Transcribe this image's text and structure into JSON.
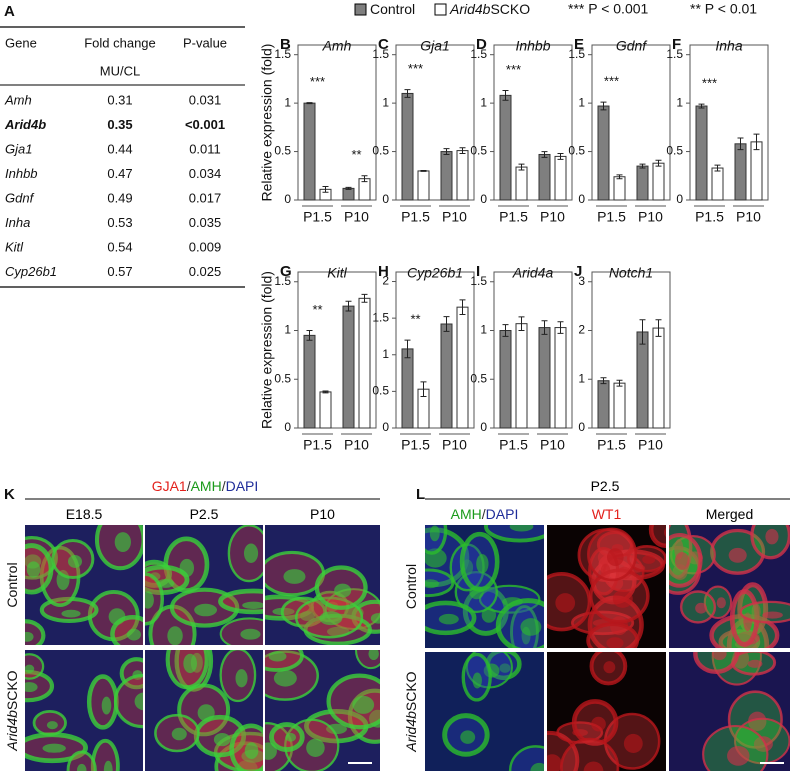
{
  "legend": {
    "items": [
      {
        "name": "Control",
        "color": "#7f7f7f"
      },
      {
        "name_italic": "Arid4b",
        "name": "SCKO",
        "color": "#ffffff"
      }
    ],
    "notes": [
      "*** P < 0.001",
      "** P < 0.01"
    ]
  },
  "table": {
    "label": "A",
    "headers": [
      "Gene",
      "Fold change",
      "P-value"
    ],
    "subheader": "MU/CL",
    "bold_row": 1,
    "rows": [
      [
        "Amh",
        "0.31",
        "0.031"
      ],
      [
        "Arid4b",
        "0.35",
        "<0.001"
      ],
      [
        "Gja1",
        "0.44",
        "0.011"
      ],
      [
        "Inhbb",
        "0.47",
        "0.034"
      ],
      [
        "Gdnf",
        "0.49",
        "0.017"
      ],
      [
        "Inha",
        "0.53",
        "0.035"
      ],
      [
        "Kitl",
        "0.54",
        "0.009"
      ],
      [
        "Cyp26b1",
        "0.57",
        "0.025"
      ]
    ]
  },
  "chart_data": [
    {
      "type": "bar",
      "label": "B",
      "title": "Amh",
      "ylabel": "Relative expression (fold)",
      "categories": [
        "P1.5",
        "P10"
      ],
      "series": [
        {
          "color": "#7f7f7f",
          "values": [
            1.0,
            0.12
          ],
          "errors": [
            0.005,
            0.01
          ]
        },
        {
          "color": "#ffffff",
          "values": [
            0.11,
            0.22
          ],
          "errors": [
            0.03,
            0.03
          ]
        }
      ],
      "ylim": [
        0,
        1.6
      ],
      "yticks": [
        0,
        0.5,
        1,
        1.5
      ],
      "annotations": [
        {
          "text": "***",
          "category": 0
        },
        {
          "text": "**",
          "category": 1
        }
      ]
    },
    {
      "type": "bar",
      "label": "C",
      "title": "Gja1",
      "categories": [
        "P1.5",
        "P10"
      ],
      "series": [
        {
          "color": "#7f7f7f",
          "values": [
            1.1,
            0.5
          ],
          "errors": [
            0.04,
            0.03
          ]
        },
        {
          "color": "#ffffff",
          "values": [
            0.3,
            0.51
          ],
          "errors": [
            0.005,
            0.03
          ]
        }
      ],
      "ylim": [
        0,
        1.6
      ],
      "yticks": [
        0,
        0.5,
        1,
        1.5
      ],
      "annotations": [
        {
          "text": "***",
          "category": 0
        }
      ]
    },
    {
      "type": "bar",
      "label": "D",
      "title": "Inhbb",
      "categories": [
        "P1.5",
        "P10"
      ],
      "series": [
        {
          "color": "#7f7f7f",
          "values": [
            1.08,
            0.47
          ],
          "errors": [
            0.05,
            0.03
          ]
        },
        {
          "color": "#ffffff",
          "values": [
            0.34,
            0.45
          ],
          "errors": [
            0.03,
            0.03
          ]
        }
      ],
      "ylim": [
        0,
        1.6
      ],
      "yticks": [
        0,
        0.5,
        1,
        1.5
      ],
      "annotations": [
        {
          "text": "***",
          "category": 0
        }
      ]
    },
    {
      "type": "bar",
      "label": "E",
      "title": "Gdnf",
      "categories": [
        "P1.5",
        "P10"
      ],
      "series": [
        {
          "color": "#7f7f7f",
          "values": [
            0.97,
            0.35
          ],
          "errors": [
            0.04,
            0.02
          ]
        },
        {
          "color": "#ffffff",
          "values": [
            0.24,
            0.38
          ],
          "errors": [
            0.02,
            0.03
          ]
        }
      ],
      "ylim": [
        0,
        1.6
      ],
      "yticks": [
        0,
        0.5,
        1,
        1.5
      ],
      "annotations": [
        {
          "text": "***",
          "category": 0
        }
      ]
    },
    {
      "type": "bar",
      "label": "F",
      "title": "Inha",
      "categories": [
        "P1.5",
        "P10"
      ],
      "series": [
        {
          "color": "#7f7f7f",
          "values": [
            0.97,
            0.58
          ],
          "errors": [
            0.02,
            0.06
          ]
        },
        {
          "color": "#ffffff",
          "values": [
            0.33,
            0.6
          ],
          "errors": [
            0.03,
            0.08
          ]
        }
      ],
      "ylim": [
        0,
        1.6
      ],
      "yticks": [
        0,
        0.5,
        1,
        1.5
      ],
      "annotations": [
        {
          "text": "***",
          "category": 0
        }
      ]
    },
    {
      "type": "bar",
      "label": "G",
      "title": "Kitl",
      "ylabel": "Relative expression (fold)",
      "categories": [
        "P1.5",
        "P10"
      ],
      "series": [
        {
          "color": "#7f7f7f",
          "values": [
            0.95,
            1.25
          ],
          "errors": [
            0.05,
            0.05
          ]
        },
        {
          "color": "#ffffff",
          "values": [
            0.37,
            1.33
          ],
          "errors": [
            0.01,
            0.04
          ]
        }
      ],
      "ylim": [
        0,
        1.6
      ],
      "yticks": [
        0,
        0.5,
        1,
        1.5
      ],
      "annotations": [
        {
          "text": "**",
          "category": 0
        }
      ]
    },
    {
      "type": "bar",
      "label": "H",
      "title": "Cyp26b1",
      "categories": [
        "P1.5",
        "P10"
      ],
      "series": [
        {
          "color": "#7f7f7f",
          "values": [
            1.08,
            1.42
          ],
          "errors": [
            0.12,
            0.1
          ]
        },
        {
          "color": "#ffffff",
          "values": [
            0.53,
            1.65
          ],
          "errors": [
            0.1,
            0.1
          ]
        }
      ],
      "ylim": [
        0,
        2.13
      ],
      "yticks": [
        0,
        0.5,
        1,
        1.5,
        2
      ],
      "annotations": [
        {
          "text": "**",
          "category": 0
        }
      ]
    },
    {
      "type": "bar",
      "label": "I",
      "title": "Arid4a",
      "categories": [
        "P1.5",
        "P10"
      ],
      "series": [
        {
          "color": "#7f7f7f",
          "values": [
            1.0,
            1.03
          ],
          "errors": [
            0.06,
            0.07
          ]
        },
        {
          "color": "#ffffff",
          "values": [
            1.07,
            1.03
          ],
          "errors": [
            0.07,
            0.06
          ]
        }
      ],
      "ylim": [
        0,
        1.6
      ],
      "yticks": [
        0,
        0.5,
        1,
        1.5
      ]
    },
    {
      "type": "bar",
      "label": "J",
      "title": "Notch1",
      "categories": [
        "P1.5",
        "P10"
      ],
      "series": [
        {
          "color": "#7f7f7f",
          "values": [
            0.97,
            1.97
          ],
          "errors": [
            0.06,
            0.25
          ]
        },
        {
          "color": "#ffffff",
          "values": [
            0.92,
            2.05
          ],
          "errors": [
            0.06,
            0.17
          ]
        }
      ],
      "ylim": [
        0,
        3.2
      ],
      "yticks": [
        0,
        1,
        2,
        3
      ]
    }
  ],
  "panels": [
    {
      "label": "K",
      "title": [
        {
          "text": "GJA1",
          "color": "#e3211c"
        },
        {
          "text": "/",
          "color": "#333333"
        },
        {
          "text": "AMH",
          "color": "#1a9a1a"
        },
        {
          "text": "/",
          "color": "#333333"
        },
        {
          "text": "DAPI",
          "color": "#1f2d9a"
        }
      ],
      "columns": [
        [
          {
            "text": "E18.5",
            "color": "#000000"
          }
        ],
        [
          {
            "text": "P2.5",
            "color": "#000000"
          }
        ],
        [
          {
            "text": "P10",
            "color": "#000000"
          }
        ]
      ],
      "rows": [
        [
          {
            "text": "Control"
          }
        ],
        [
          {
            "text": "Arid4b",
            "italic": true
          },
          {
            "text": "SCKO"
          }
        ]
      ]
    },
    {
      "label": "L",
      "title": [
        {
          "text": "P2.5",
          "color": "#000000"
        }
      ],
      "columns": [
        [
          {
            "text": "AMH",
            "color": "#1a9a1a"
          },
          {
            "text": "/",
            "color": "#333333"
          },
          {
            "text": "DAPI",
            "color": "#1f2d9a"
          }
        ],
        [
          {
            "text": "WT1",
            "color": "#e3211c"
          }
        ],
        [
          {
            "text": "Merged",
            "color": "#000000"
          }
        ]
      ],
      "rows": [
        [
          {
            "text": "Control"
          }
        ],
        [
          {
            "text": "Arid4b",
            "italic": true
          },
          {
            "text": "SCKO"
          }
        ]
      ]
    }
  ]
}
